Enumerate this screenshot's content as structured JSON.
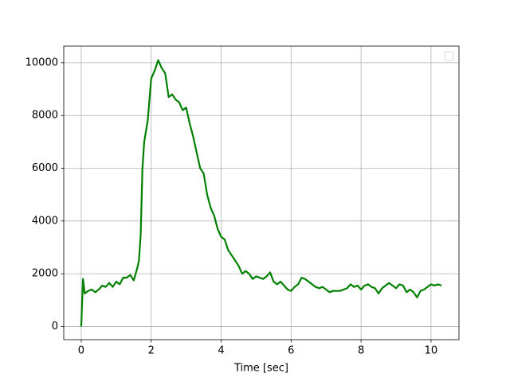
{
  "chart_data": {
    "type": "line",
    "x_label": "Time [sec]",
    "x": [
      0,
      0.05,
      0.1,
      0.2,
      0.3,
      0.4,
      0.5,
      0.6,
      0.7,
      0.8,
      0.9,
      1.0,
      1.1,
      1.2,
      1.3,
      1.4,
      1.5,
      1.6,
      1.65,
      1.7,
      1.75,
      1.8,
      1.9,
      2.0,
      2.1,
      2.2,
      2.3,
      2.4,
      2.5,
      2.6,
      2.7,
      2.8,
      2.9,
      3.0,
      3.1,
      3.2,
      3.3,
      3.4,
      3.5,
      3.6,
      3.7,
      3.8,
      3.9,
      4.0,
      4.1,
      4.2,
      4.3,
      4.4,
      4.5,
      4.6,
      4.7,
      4.8,
      4.9,
      5.0,
      5.2,
      5.3,
      5.4,
      5.5,
      5.6,
      5.7,
      5.8,
      5.9,
      6.0,
      6.1,
      6.2,
      6.3,
      6.4,
      6.5,
      6.6,
      6.7,
      6.8,
      6.9,
      7.0,
      7.1,
      7.2,
      7.4,
      7.6,
      7.7,
      7.8,
      7.9,
      8.0,
      8.1,
      8.2,
      8.3,
      8.4,
      8.5,
      8.6,
      8.7,
      8.8,
      8.9,
      9.0,
      9.1,
      9.2,
      9.3,
      9.4,
      9.5,
      9.6,
      9.7,
      9.8,
      9.9,
      10.0,
      10.1,
      10.2,
      10.3
    ],
    "series": [
      {
        "color": "#008000",
        "values": [
          0,
          1800,
          1250,
          1350,
          1400,
          1300,
          1400,
          1550,
          1500,
          1650,
          1500,
          1700,
          1600,
          1850,
          1850,
          1950,
          1750,
          2200,
          2500,
          3500,
          6000,
          7000,
          7800,
          9400,
          9700,
          10100,
          9800,
          9600,
          8700,
          8800,
          8600,
          8500,
          8200,
          8300,
          7700,
          7200,
          6600,
          6000,
          5800,
          5000,
          4500,
          4200,
          3700,
          3400,
          3300,
          2900,
          2700,
          2500,
          2300,
          2000,
          2100,
          2000,
          1800,
          1900,
          1800,
          1900,
          2050,
          1700,
          1600,
          1700,
          1550,
          1400,
          1350,
          1500,
          1600,
          1850,
          1800,
          1700,
          1600,
          1500,
          1450,
          1500,
          1400,
          1300,
          1350,
          1350,
          1450,
          1600,
          1500,
          1550,
          1400,
          1550,
          1600,
          1500,
          1450,
          1250,
          1450,
          1550,
          1650,
          1550,
          1450,
          1600,
          1550,
          1300,
          1400,
          1300,
          1100,
          1350,
          1400,
          1500,
          1600,
          1550,
          1600,
          1550
        ]
      }
    ],
    "xlim": [
      -0.5,
      10.8
    ],
    "xticks": [
      0,
      2,
      4,
      6,
      8,
      10
    ],
    "ylim": [
      -500,
      10630
    ],
    "yticks": [
      0,
      2000,
      4000,
      6000,
      8000,
      10000
    ],
    "grid": true,
    "legend": "upper right"
  }
}
